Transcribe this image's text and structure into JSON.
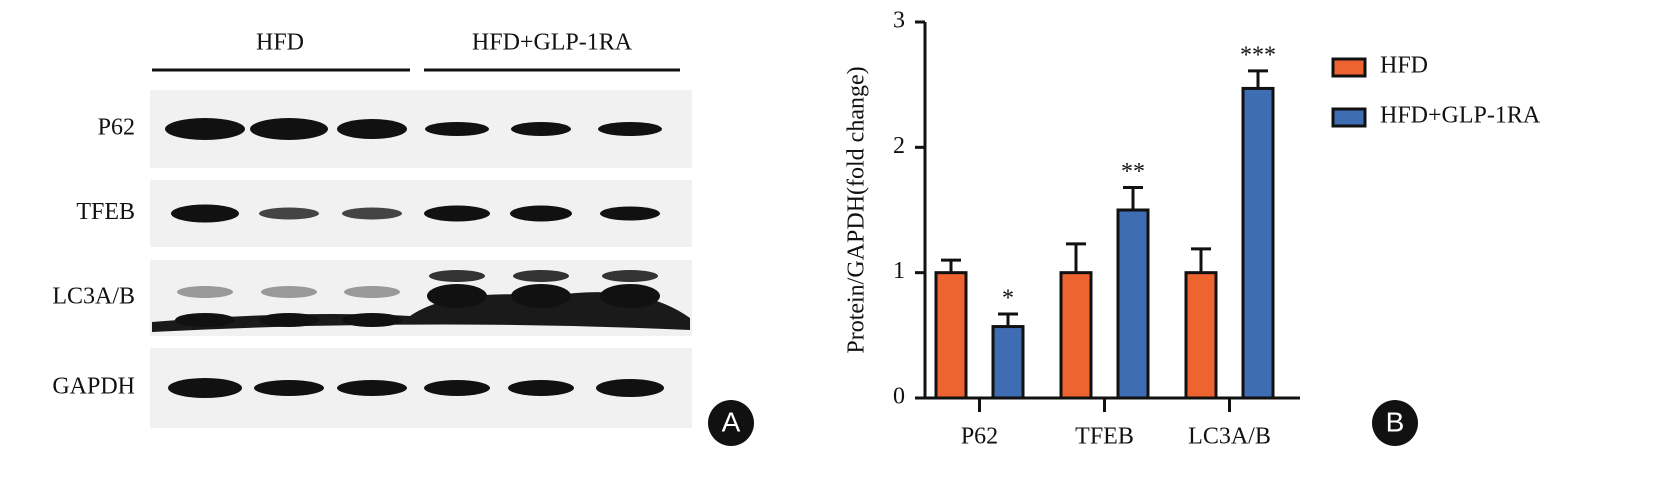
{
  "blot": {
    "groups": [
      "HFD",
      "HFD+GLP-1RA"
    ],
    "rows": [
      "P62",
      "TFEB",
      "LC3A/B",
      "GAPDH"
    ],
    "panel_label": "A"
  },
  "chart_data": {
    "type": "bar",
    "panel_label": "B",
    "y_label": "Protein/GAPDH(fold change)",
    "categories": [
      "P62",
      "TFEB",
      "LC3A/B"
    ],
    "series": [
      {
        "name": "HFD",
        "color": "#ee6431",
        "values": [
          1,
          1,
          1
        ],
        "errors": [
          0.1,
          0.23,
          0.19
        ]
      },
      {
        "name": "HFD+GLP-1RA",
        "color": "#3f6db3",
        "values": [
          0.57,
          1.5,
          2.47
        ],
        "errors": [
          0.1,
          0.18,
          0.14
        ],
        "annotations": [
          "*",
          "**",
          "***"
        ]
      }
    ],
    "ylim": [
      0,
      3
    ],
    "yticks": [
      0,
      1,
      2,
      3
    ],
    "grid": false,
    "legend_position": "right"
  }
}
